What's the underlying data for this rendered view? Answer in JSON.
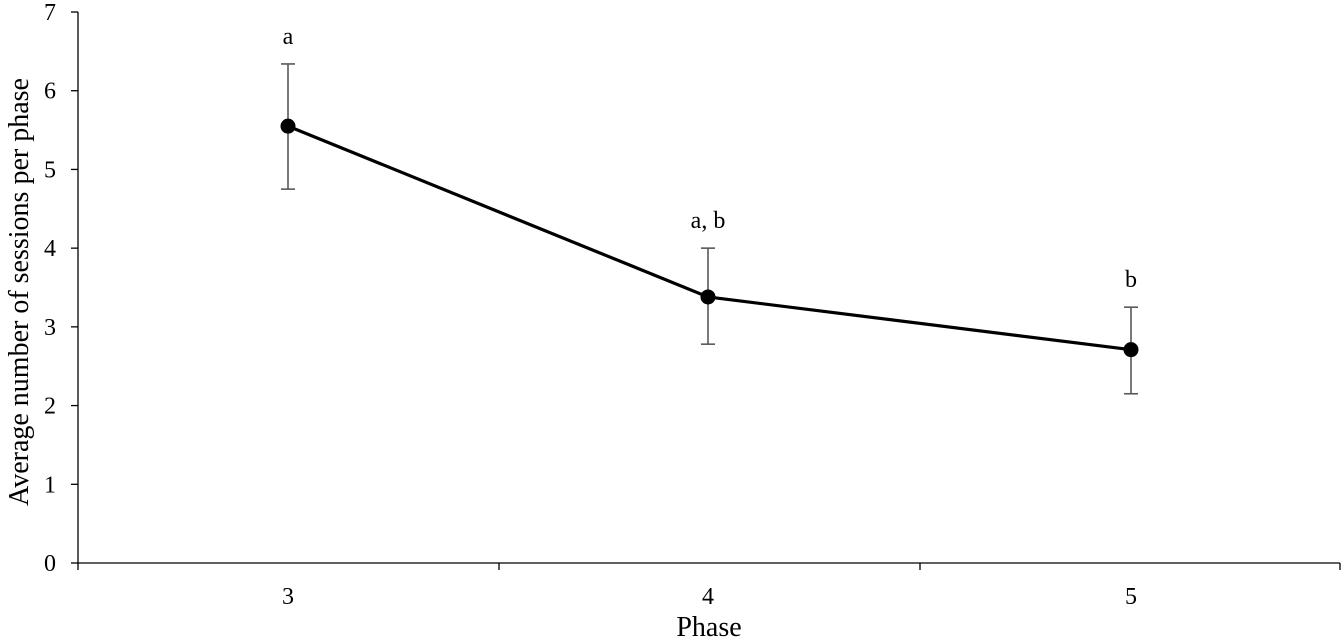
{
  "chart_data": {
    "type": "line",
    "title": "",
    "xlabel": "Phase",
    "ylabel": "Average  number of sessions per phase",
    "categories": [
      "3",
      "4",
      "5"
    ],
    "ylim": [
      0,
      7
    ],
    "yticks": [
      0,
      1,
      2,
      3,
      4,
      5,
      6,
      7
    ],
    "grid": false,
    "legend": "none",
    "series": [
      {
        "values": [
          5.55,
          3.38,
          2.71
        ],
        "error_low": [
          4.75,
          2.78,
          2.15
        ],
        "error_high": [
          6.34,
          4.0,
          3.25
        ],
        "annotations": [
          "a",
          "a, b",
          "b"
        ],
        "color": "#000000",
        "marker": "circle"
      }
    ],
    "error_bar_color": "#595959"
  }
}
